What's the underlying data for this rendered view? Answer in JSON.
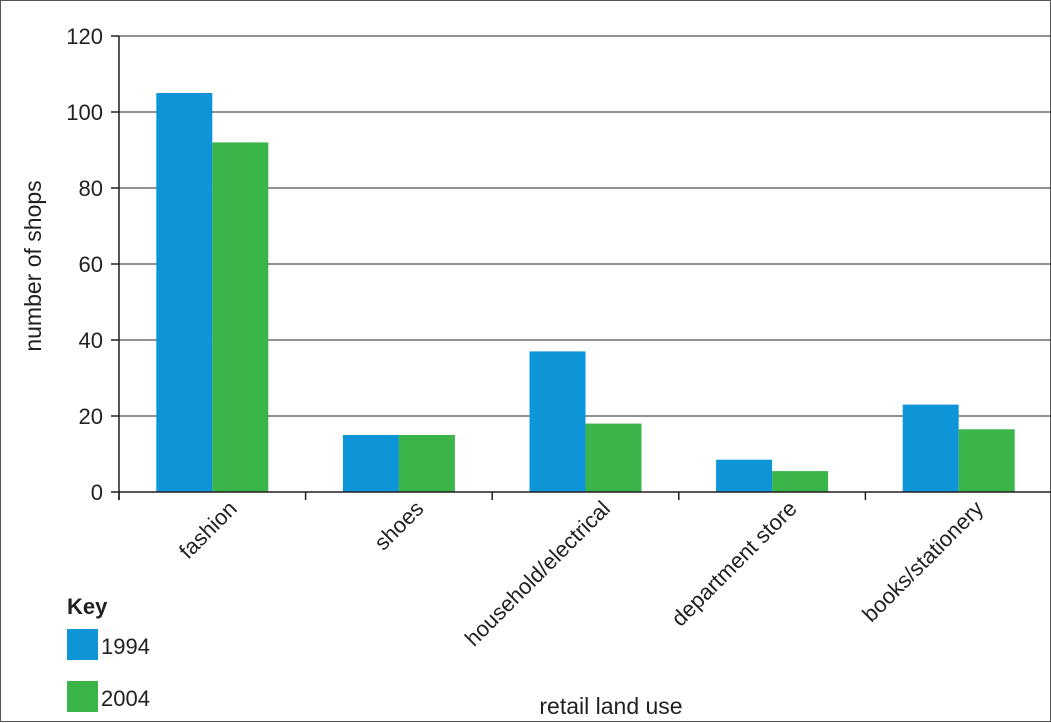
{
  "chart_data": {
    "type": "bar",
    "categories": [
      "fashion",
      "shoes",
      "household/electrical",
      "department store",
      "books/stationery"
    ],
    "series": [
      {
        "name": "1994",
        "values": [
          105,
          15,
          37,
          8.5,
          23
        ],
        "color": "#0d95d8"
      },
      {
        "name": "2004",
        "values": [
          92,
          15,
          18,
          5.5,
          16.5
        ],
        "color": "#3bb54a"
      }
    ],
    "xlabel": "retail land use",
    "ylabel": "number of shops",
    "ylim": [
      0,
      120
    ],
    "yticks": [
      0,
      20,
      40,
      60,
      80,
      100,
      120
    ],
    "grid": true,
    "legend": {
      "title": "Key",
      "placement": "bottom-left"
    }
  }
}
